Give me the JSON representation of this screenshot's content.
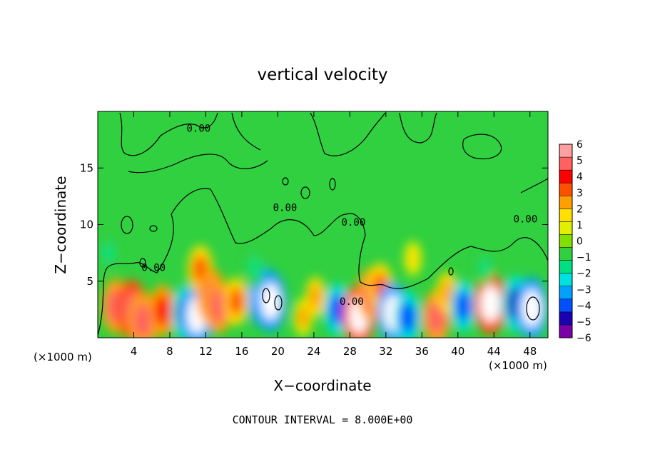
{
  "chart_data": {
    "type": "heatmap",
    "title": "vertical velocity",
    "xlabel": "X−coordinate",
    "ylabel": "Z−coordinate",
    "x_unit_label": "(×1000 m)",
    "z_unit_label": "(×1000 m)",
    "footer": "CONTOUR INTERVAL = 8.000E+00",
    "xlim": [
      0,
      50
    ],
    "ylim": [
      0,
      20
    ],
    "x_ticks": [
      4,
      8,
      12,
      16,
      20,
      24,
      28,
      32,
      36,
      40,
      44,
      48
    ],
    "y_ticks": [
      5,
      10,
      15
    ],
    "colorbar": {
      "min": -6,
      "max": 6,
      "tick_labels": [
        "6",
        "5",
        "4",
        "3",
        "2",
        "1",
        "0",
        "−1",
        "−2",
        "−3",
        "−4",
        "−5",
        "−6"
      ],
      "tick_values": [
        6,
        5,
        4,
        3,
        2,
        1,
        0,
        -1,
        -2,
        -3,
        -4,
        -5,
        -6
      ],
      "colors": [
        "#7a00a8",
        "#1c00b4",
        "#0050ff",
        "#00a0ff",
        "#00e0e0",
        "#00e080",
        "#30d040",
        "#80e000",
        "#e0f000",
        "#ffe000",
        "#ffa000",
        "#ff5000",
        "#ff0000",
        "#ff6060",
        "#ffa0a0"
      ]
    },
    "contour_labels": [
      {
        "text": "0.00",
        "x": 11.2,
        "z": 18.2
      },
      {
        "text": "0.00",
        "x": 20.8,
        "z": 11.2
      },
      {
        "text": "0.00",
        "x": 28.4,
        "z": 9.9
      },
      {
        "text": "0.00",
        "x": 6.2,
        "z": 5.9
      },
      {
        "text": "0.00",
        "x": 28.2,
        "z": 2.9
      },
      {
        "text": "0.00",
        "x": 47.5,
        "z": 10.2
      }
    ],
    "cells": [
      {
        "x": 2.0,
        "z": 2.8,
        "value": 4.5
      },
      {
        "x": 3.8,
        "z": 2.5,
        "value": 5.2
      },
      {
        "x": 5.0,
        "z": 1.5,
        "value": 4.8
      },
      {
        "x": 7.2,
        "z": 2.4,
        "value": 4.0
      },
      {
        "x": 9.8,
        "z": 2.2,
        "value": -4.5
      },
      {
        "x": 11.0,
        "z": 2.0,
        "value": -5.6
      },
      {
        "x": 11.4,
        "z": 6.0,
        "value": 3.6
      },
      {
        "x": 12.6,
        "z": 3.6,
        "value": 4.8
      },
      {
        "x": 13.4,
        "z": 2.8,
        "value": 4.5
      },
      {
        "x": 15.4,
        "z": 3.2,
        "value": 3.4
      },
      {
        "x": 18.4,
        "z": 3.6,
        "value": -5.4
      },
      {
        "x": 19.2,
        "z": 3.2,
        "value": -5.4
      },
      {
        "x": 17.4,
        "z": 6.2,
        "value": -2.0
      },
      {
        "x": 22.8,
        "z": 1.8,
        "value": 2.0
      },
      {
        "x": 24.2,
        "z": 3.6,
        "value": 2.2
      },
      {
        "x": 26.6,
        "z": 2.5,
        "value": -4.0
      },
      {
        "x": 29.0,
        "z": 2.0,
        "value": 5.6
      },
      {
        "x": 30.4,
        "z": 3.8,
        "value": 4.4
      },
      {
        "x": 31.4,
        "z": 4.5,
        "value": 3.4
      },
      {
        "x": 32.8,
        "z": 2.2,
        "value": -5.4
      },
      {
        "x": 34.4,
        "z": 1.8,
        "value": -4.0
      },
      {
        "x": 37.6,
        "z": 1.8,
        "value": 4.4
      },
      {
        "x": 38.8,
        "z": 4.0,
        "value": 2.4
      },
      {
        "x": 40.6,
        "z": 2.8,
        "value": -3.8
      },
      {
        "x": 43.6,
        "z": 3.0,
        "value": 5.6
      },
      {
        "x": 46.4,
        "z": 3.0,
        "value": -4.6
      },
      {
        "x": 48.2,
        "z": 2.6,
        "value": -5.6
      },
      {
        "x": 43.0,
        "z": 6.2,
        "value": -1.4
      },
      {
        "x": 1.2,
        "z": 7.5,
        "value": -1.6
      },
      {
        "x": 35.0,
        "z": 7.0,
        "value": 1.4
      }
    ]
  }
}
